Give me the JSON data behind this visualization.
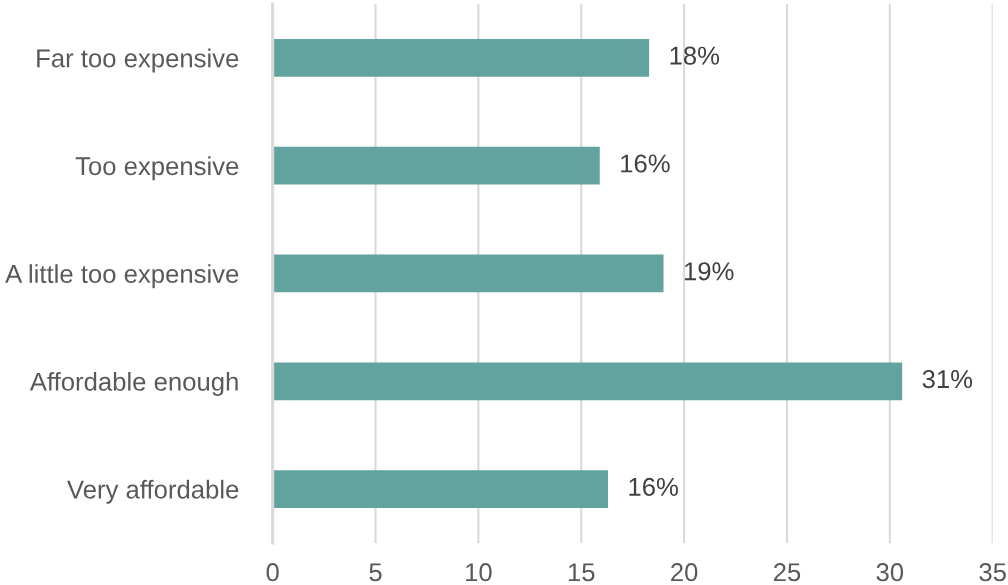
{
  "chart_data": {
    "type": "bar",
    "orientation": "horizontal",
    "categories": [
      "Far too expensive",
      "Too expensive",
      "A little too expensive",
      "Affordable enough",
      "Very affordable"
    ],
    "values": [
      18.3,
      15.9,
      19.0,
      30.6,
      16.3
    ],
    "value_labels": [
      "18%",
      "16%",
      "19%",
      "31%",
      "16%"
    ],
    "color": "#62a39f",
    "xlim": [
      0,
      35
    ],
    "xticks": [
      0,
      5,
      10,
      15,
      20,
      25,
      30,
      35
    ],
    "grid": "x"
  }
}
